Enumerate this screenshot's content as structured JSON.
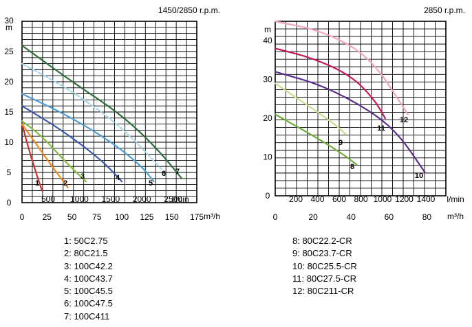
{
  "chart_data": [
    {
      "type": "line",
      "title": "1450/2850 r.p.m.",
      "ylabel": "m",
      "ylim": [
        0,
        30
      ],
      "y_ticks": [
        "0",
        "5",
        "10",
        "15",
        "20",
        "25",
        "30"
      ],
      "xlim_m3h": [
        0,
        175
      ],
      "x_ticks_m3h": [
        "0",
        "25",
        "50",
        "75",
        "100",
        "125",
        "150",
        "175"
      ],
      "x_unit_m3h": "m³/h",
      "x_ticks_lmin": [
        "500",
        "1000",
        "1500",
        "2000",
        "2500"
      ],
      "x_unit_lmin": "l/min",
      "series": [
        {
          "name": "50C2.75",
          "label": "1",
          "color": "#c8312e",
          "dashed": false,
          "x": [
            0,
            9,
            20
          ],
          "y": [
            13,
            7.5,
            2
          ]
        },
        {
          "name": "80C21.5",
          "label": "2",
          "color": "#ef8a1d",
          "dashed": false,
          "x": [
            0,
            15,
            30,
            46
          ],
          "y": [
            13,
            9.5,
            6,
            2.5
          ]
        },
        {
          "name": "100C42.2",
          "label": "3",
          "color": "#84bd3c",
          "dashed": false,
          "x": [
            0,
            20,
            45,
            64
          ],
          "y": [
            13.5,
            11,
            6.5,
            3.5
          ]
        },
        {
          "name": "100C43.7",
          "label": "4",
          "color": "#3b59a8",
          "dashed": false,
          "x": [
            0,
            40,
            80,
            100
          ],
          "y": [
            16,
            12,
            7,
            3.5
          ]
        },
        {
          "name": "100C45.5",
          "label": "5",
          "color": "#4f9fd6",
          "dashed": false,
          "x": [
            0,
            45,
            90,
            120,
            132
          ],
          "y": [
            18,
            14.5,
            10,
            6,
            3.5
          ]
        },
        {
          "name": "100C47.5",
          "label": "6",
          "color": "#a8d8ea",
          "dashed": true,
          "x": [
            0,
            50,
            100,
            140
          ],
          "y": [
            23,
            18.5,
            12.5,
            5.5
          ]
        },
        {
          "name": "100C411",
          "label": "7",
          "color": "#2e6e3c",
          "dashed": false,
          "x": [
            0,
            50,
            100,
            135,
            160
          ],
          "y": [
            26,
            20,
            14.5,
            9,
            4
          ]
        }
      ]
    },
    {
      "type": "line",
      "title": "2850 r.p.m.",
      "ylabel": "m",
      "ylim": [
        0,
        45
      ],
      "y_ticks": [
        "0",
        "10",
        "20",
        "30",
        "40"
      ],
      "xlim_m3h": [
        0,
        90
      ],
      "x_ticks_m3h": [
        "0",
        "20",
        "40",
        "60",
        "80"
      ],
      "x_unit_m3h": "m³/h",
      "x_ticks_lmin": [
        "200",
        "400",
        "600",
        "800",
        "1000",
        "1200",
        "1400"
      ],
      "x_unit_lmin": "l/min",
      "series": [
        {
          "name": "80C22.2-CR",
          "label": "8",
          "color": "#6fae3c",
          "dashed": false,
          "x": [
            0,
            20,
            35,
            43
          ],
          "y": [
            21,
            15.5,
            11,
            8
          ]
        },
        {
          "name": "80C23.7-CR",
          "label": "9",
          "color": "#c4e08a",
          "dashed": false,
          "x": [
            0,
            15,
            30,
            37
          ],
          "y": [
            29,
            24,
            19,
            16
          ]
        },
        {
          "name": "80C25.5-CR",
          "label": "10",
          "color": "#5b2d8e",
          "dashed": false,
          "x": [
            0,
            25,
            50,
            65,
            79
          ],
          "y": [
            32,
            28.5,
            22,
            16,
            6
          ]
        },
        {
          "name": "80C27.5-CR",
          "label": "11",
          "color": "#c2185b",
          "dashed": false,
          "x": [
            0,
            20,
            40,
            52,
            58
          ],
          "y": [
            38,
            35.5,
            31,
            25,
            20
          ]
        },
        {
          "name": "80C211-CR",
          "label": "12",
          "color": "#f2a5b8",
          "dashed": false,
          "x": [
            0,
            25,
            50,
            70
          ],
          "y": [
            45,
            42.5,
            36,
            21
          ]
        }
      ]
    }
  ],
  "legend_left": [
    "1: 50C2.75",
    "2: 80C21.5",
    "3: 100C42.2",
    "4: 100C43.7",
    "5: 100C45.5",
    "6: 100C47.5",
    "7: 100C411"
  ],
  "legend_right": [
    "8: 80C22.2-CR",
    "9: 80C23.7-CR",
    "10: 80C25.5-CR",
    "11: 80C27.5-CR",
    "12: 80C211-CR"
  ],
  "colors": {
    "grid": "#000000",
    "background": "#ffffff"
  }
}
